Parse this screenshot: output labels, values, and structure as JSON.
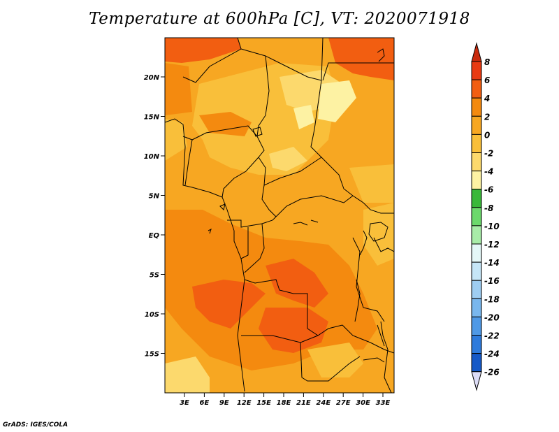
{
  "title": "Temperature at 600hPa [C], VT: 2020071918",
  "credit": "GrADS: IGES/COLA",
  "map": {
    "lat_labels": [
      "20N",
      "15N",
      "10N",
      "5N",
      "EQ",
      "5S",
      "10S",
      "15S"
    ],
    "lon_labels": [
      "3E",
      "6E",
      "9E",
      "12E",
      "15E",
      "18E",
      "21E",
      "24E",
      "27E",
      "30E",
      "33E"
    ]
  },
  "colorbar": {
    "labels": [
      "8",
      "6",
      "4",
      "2",
      "0",
      "-2",
      "-4",
      "-6",
      "-8",
      "-10",
      "-12",
      "-14",
      "-16",
      "-18",
      "-20",
      "-22",
      "-24",
      "-26"
    ],
    "colors": [
      "#e83a12",
      "#f25e11",
      "#f48a0f",
      "#f7a722",
      "#f9bf3a",
      "#fcd96d",
      "#fdf2a3",
      "#3ab83a",
      "#6cd96c",
      "#a8eca8",
      "#e4f7f7",
      "#c6e6f7",
      "#9ecdf2",
      "#79b7ee",
      "#4f99e6",
      "#2e7bdc",
      "#1559c7",
      "#0b3aa6",
      "#061a6e"
    ],
    "top_arrow_color": "#c92a0c",
    "bottom_arrow_color": "#dcdcf6"
  }
}
